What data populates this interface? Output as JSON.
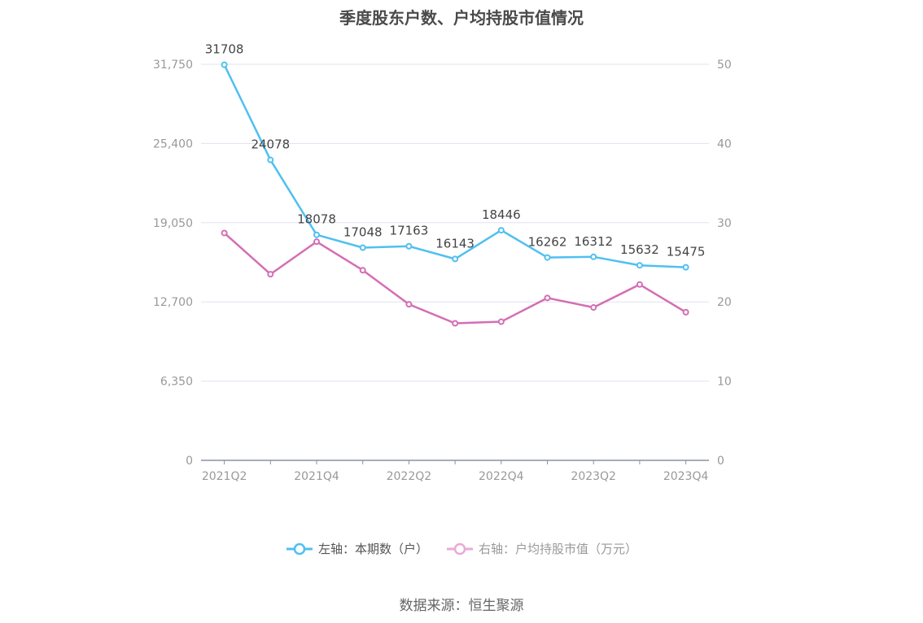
{
  "title": "季度股东户数、户均持股市值情况",
  "source": "数据来源：恒生聚源",
  "colors": {
    "left": "#4fc0f0",
    "right": "#d46eb4",
    "grid": "#dfe3ef",
    "axis": "#8b8fa6",
    "tick": "#999999",
    "label": "#444444"
  },
  "chart_data": {
    "type": "line",
    "categories": [
      "2021Q2",
      "2021Q3",
      "2021Q4",
      "2022Q1",
      "2022Q2",
      "2022Q3",
      "2022Q4",
      "2023Q1",
      "2023Q2",
      "2023Q3",
      "2023Q4"
    ],
    "x_tick_labels": [
      "2021Q2",
      "2021Q4",
      "2022Q2",
      "2022Q4",
      "2023Q2",
      "2023Q4"
    ],
    "left_axis": {
      "ticks": [
        "0",
        "6,350",
        "12,700",
        "19,050",
        "25,400",
        "31,750"
      ],
      "ylim": [
        0,
        31750
      ]
    },
    "right_axis": {
      "ticks": [
        "0",
        "10",
        "20",
        "30",
        "40",
        "50"
      ],
      "ylim": [
        0,
        50
      ]
    },
    "grid": true,
    "legend_position": "bottom",
    "series": [
      {
        "name": "左轴：本期数（户）",
        "axis": "left",
        "values": [
          31708,
          24078,
          18078,
          17048,
          17163,
          16143,
          18446,
          16262,
          16312,
          15632,
          15475
        ],
        "labels": [
          "31708",
          "24078",
          "18078",
          "17048",
          "17163",
          "16143",
          "18446",
          "16262",
          "16312",
          "15632",
          "15475"
        ]
      },
      {
        "name": "右轴：户均持股市值（万元）",
        "axis": "right",
        "values": [
          28.7,
          23.5,
          27.6,
          24.0,
          19.7,
          17.3,
          17.5,
          20.5,
          19.3,
          22.2,
          18.7
        ]
      }
    ]
  }
}
